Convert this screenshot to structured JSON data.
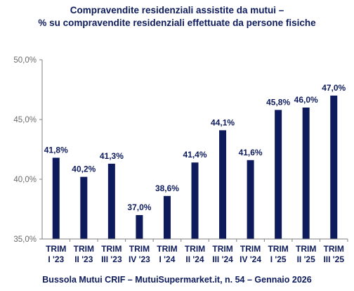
{
  "chart_data": {
    "type": "bar",
    "title_line1": "Compravendite residenziali assistite da mutui –",
    "title_line2": "% su compravendite residenziali effettuate da persone fisiche",
    "categories": [
      [
        "TRIM",
        "I '23"
      ],
      [
        "TRIM",
        "II '23"
      ],
      [
        "TRIM",
        "III '23"
      ],
      [
        "TRIM",
        "IV '23"
      ],
      [
        "TRIM",
        "I '24"
      ],
      [
        "TRIM",
        "II '24"
      ],
      [
        "TRIM",
        "III '24"
      ],
      [
        "TRIM",
        "IV '24"
      ],
      [
        "TRIM",
        "I '25"
      ],
      [
        "TRIM",
        "II '25"
      ],
      [
        "TRIM",
        "III '25"
      ]
    ],
    "values": [
      41.8,
      40.2,
      41.3,
      37.0,
      38.6,
      41.4,
      44.1,
      41.6,
      45.8,
      46.0,
      47.0
    ],
    "value_labels": [
      "41,8%",
      "40,2%",
      "41,3%",
      "37,0%",
      "38,6%",
      "41,4%",
      "44,1%",
      "41,6%",
      "45,8%",
      "46,0%",
      "47,0%"
    ],
    "ylim": [
      35,
      50
    ],
    "yticks": [
      35,
      40,
      45,
      50
    ],
    "ytick_labels": [
      "35,0%",
      "40,0%",
      "45,0%",
      "50,0%"
    ],
    "grid": false,
    "legend": "none",
    "colors": {
      "bar": "#0d1b5c",
      "text": "#0d1b5c",
      "axis": "#7f7f7f",
      "tick_text": "#6b6b6b"
    }
  },
  "footer": "Bussola Mutui CRIF – MutuiSupermarket.it, n. 54 – Gennaio 2026"
}
